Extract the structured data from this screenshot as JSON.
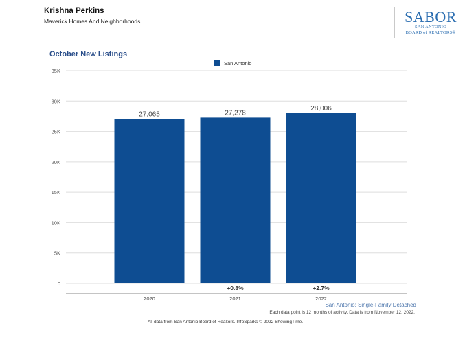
{
  "header": {
    "agent_name": "Krishna Perkins",
    "company": "Maverick Homes And Neighborhoods"
  },
  "logo": {
    "word": "SABOR",
    "line1": "SAN ANTONIO",
    "line2": "BOARD of REALTORS®"
  },
  "chart_data": {
    "type": "bar",
    "title": "October New Listings",
    "legend": [
      "San Antonio"
    ],
    "categories": [
      "2020",
      "2021",
      "2022"
    ],
    "series": [
      {
        "name": "San Antonio",
        "values": [
          27065,
          27278,
          28006
        ]
      }
    ],
    "value_labels": [
      "27,065",
      "27,278",
      "28,006"
    ],
    "change_labels": [
      "",
      "+0.8%",
      "+2.7%"
    ],
    "y_ticks": [
      0,
      5000,
      10000,
      15000,
      20000,
      25000,
      30000,
      35000
    ],
    "y_tick_labels": [
      "0",
      "5K",
      "10K",
      "15K",
      "20K",
      "25K",
      "30K",
      "35K"
    ],
    "ylim": [
      0,
      35000
    ],
    "xlabel": "",
    "ylabel": "",
    "grid": true,
    "legend_position": "top-center",
    "bar_color": "#0e4d92"
  },
  "footer": {
    "series_label": "San Antonio: Single-Family Detached",
    "note": "Each data point is 12 months of activity. Data is from November 12, 2022.",
    "source": "All data from San Antonio Board of Realtors. InfoSparks © 2022 ShowingTime."
  }
}
